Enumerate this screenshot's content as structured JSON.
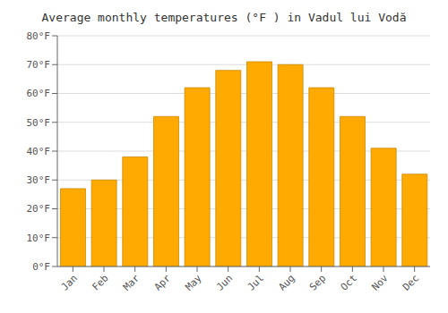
{
  "chart_data": {
    "type": "bar",
    "title": "Average monthly temperatures (°F ) in Vadul lui Vodă",
    "categories": [
      "Jan",
      "Feb",
      "Mar",
      "Apr",
      "May",
      "Jun",
      "Jul",
      "Aug",
      "Sep",
      "Oct",
      "Nov",
      "Dec"
    ],
    "values": [
      27,
      30,
      38,
      52,
      62,
      68,
      71,
      70,
      62,
      52,
      41,
      32
    ],
    "color": "#FFAA00",
    "ylim": [
      0,
      80
    ],
    "yticks": [
      {
        "value": 0,
        "label": "0°F"
      },
      {
        "value": 10,
        "label": "10°F"
      },
      {
        "value": 20,
        "label": "20°F"
      },
      {
        "value": 30,
        "label": "30°F"
      },
      {
        "value": 40,
        "label": "40°F"
      },
      {
        "value": 50,
        "label": "50°F"
      },
      {
        "value": 60,
        "label": "60°F"
      },
      {
        "value": 70,
        "label": "70°F"
      },
      {
        "value": 80,
        "label": "80°F"
      }
    ],
    "grid": true
  }
}
